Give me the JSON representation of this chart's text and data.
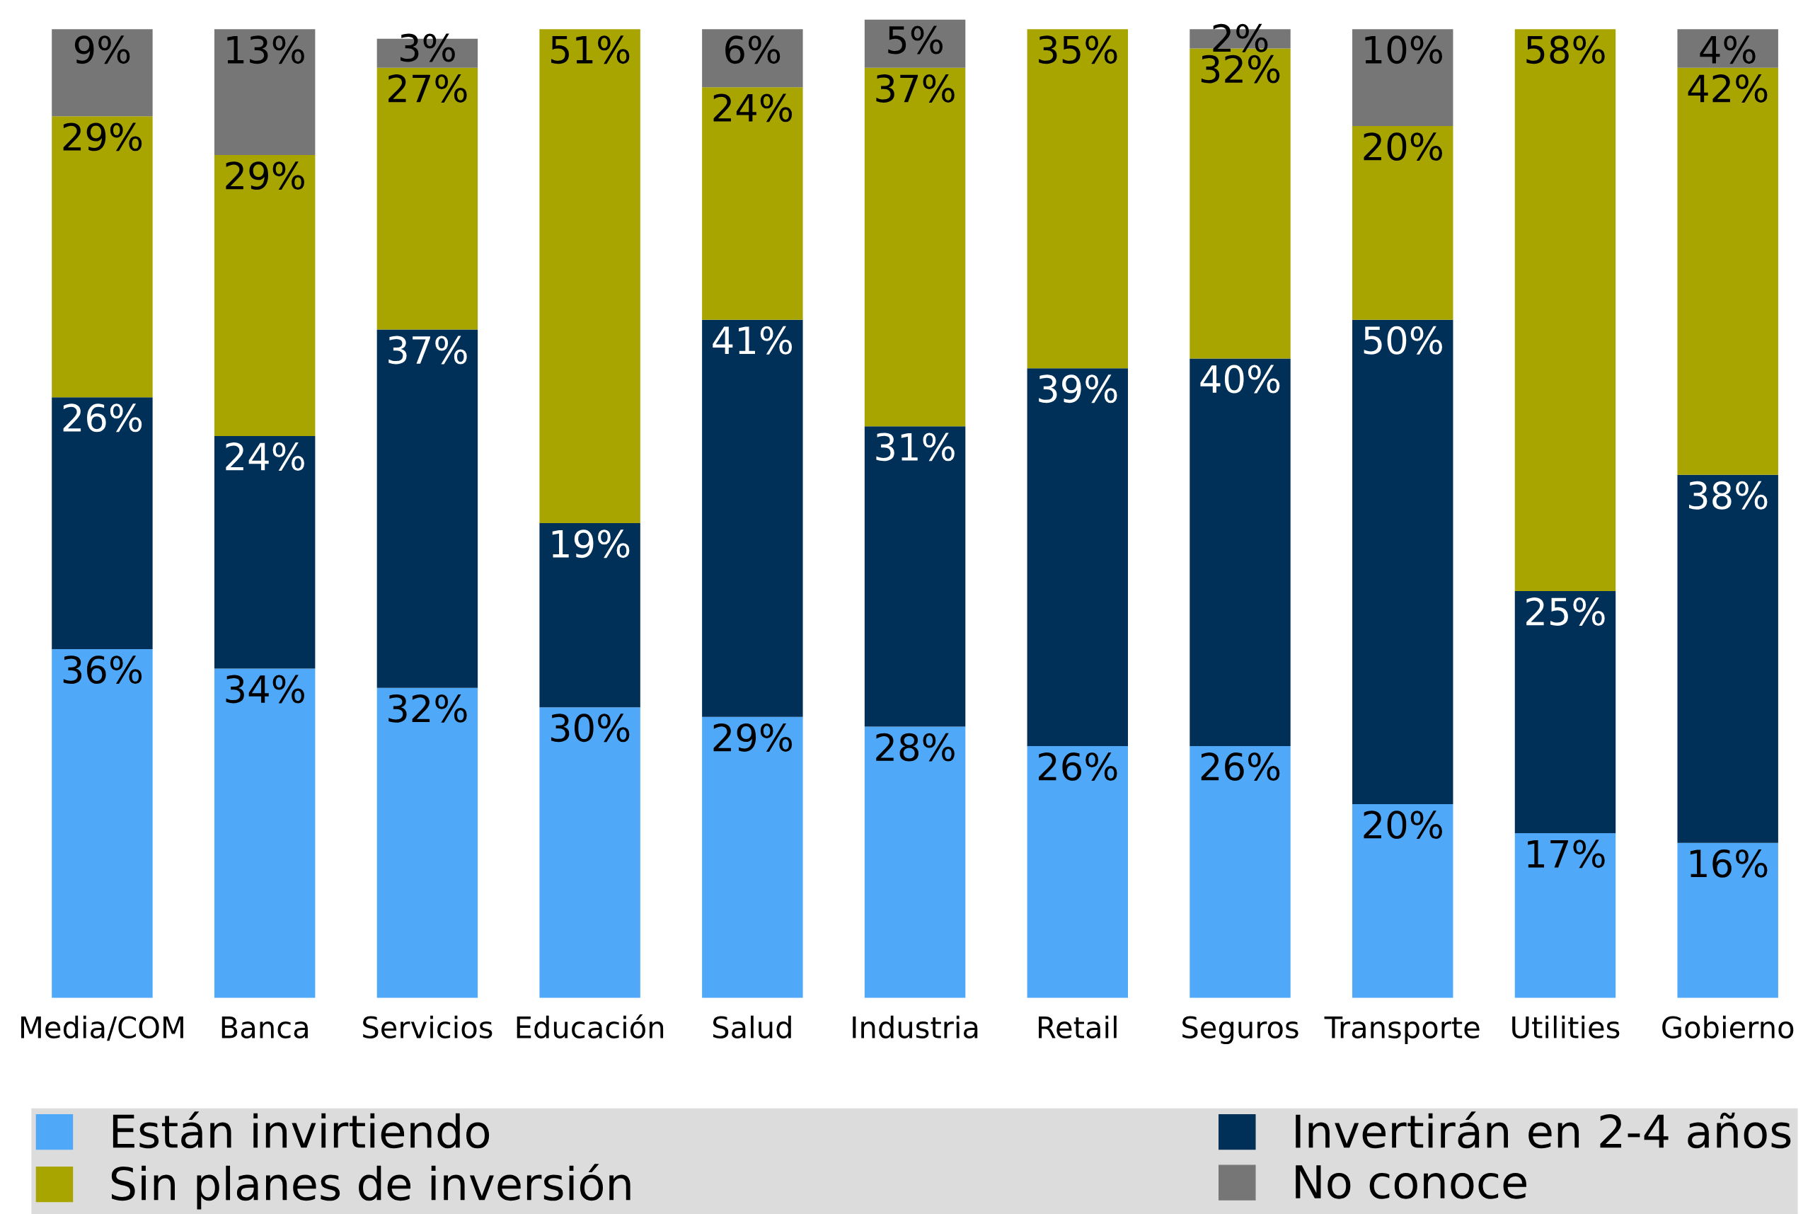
{
  "chart_data": {
    "type": "bar",
    "stacked": true,
    "legend": "bottom",
    "grid": false,
    "ylim": [
      0,
      101
    ],
    "categories": [
      "Media/COM",
      "Banca",
      "Servicios",
      "Educación",
      "Salud",
      "Industria",
      "Retail",
      "Seguros",
      "Transporte",
      "Utilities",
      "Gobierno"
    ],
    "series": [
      {
        "name": "Están invirtiendo",
        "color": "#4fa8f8",
        "values": [
          36,
          34,
          32,
          30,
          29,
          28,
          26,
          26,
          20,
          17,
          16
        ],
        "value_labels": [
          "36%",
          "34%",
          "32%",
          "30%",
          "29%",
          "28%",
          "26%",
          "26%",
          "20%",
          "17%",
          "16%"
        ]
      },
      {
        "name": "Invertirán en 2-4 años",
        "color": "#003057",
        "values": [
          26,
          24,
          37,
          19,
          41,
          31,
          39,
          40,
          50,
          25,
          38
        ],
        "value_labels": [
          "26%",
          "24%",
          "37%",
          "19%",
          "41%",
          "31%",
          "39%",
          "40%",
          "50%",
          "25%",
          "38%"
        ]
      },
      {
        "name": "Sin planes de inversión",
        "color": "#a8a400",
        "values": [
          29,
          29,
          27,
          51,
          24,
          37,
          35,
          32,
          20,
          58,
          42
        ],
        "value_labels": [
          "29%",
          "29%",
          "27%",
          "51%",
          "24%",
          "37%",
          "35%",
          "32%",
          "20%",
          "58%",
          "42%"
        ]
      },
      {
        "name": "No conoce",
        "color": "#767676",
        "values": [
          9,
          13,
          3,
          null,
          6,
          5,
          null,
          2,
          10,
          null,
          4
        ],
        "value_labels": [
          "9%",
          "13%",
          "3%",
          null,
          "6%",
          "5%",
          null,
          "2%",
          "10%",
          null,
          "4%"
        ]
      }
    ]
  }
}
